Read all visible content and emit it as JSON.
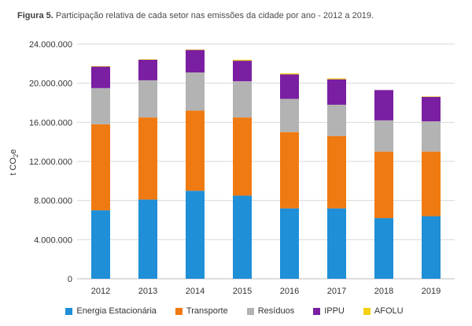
{
  "caption": {
    "label": "Figura 5.",
    "text": "Participação relativa de cada setor nas emissões da cidade por ano - 2012 a 2019."
  },
  "chart_data": {
    "type": "bar",
    "stacked": true,
    "title": "Participação relativa de cada setor nas emissões da cidade por ano - 2012 a 2019.",
    "xlabel": "",
    "ylabel": "t CO₂e",
    "ylim": [
      0,
      24000000
    ],
    "yticks": [
      0,
      4000000,
      8000000,
      12000000,
      16000000,
      20000000,
      24000000
    ],
    "ytick_labels": [
      "0",
      "4.000.000",
      "8.000.000",
      "12.000.000",
      "16.000.000",
      "20.000.000",
      "24.000.000"
    ],
    "grid": true,
    "legend_position": "bottom",
    "categories": [
      "2012",
      "2013",
      "2014",
      "2015",
      "2016",
      "2017",
      "2018",
      "2019"
    ],
    "series": [
      {
        "name": "Energia Estacionária",
        "color": "#1f8fd8",
        "values": [
          7000000,
          8100000,
          9000000,
          8500000,
          7200000,
          7200000,
          6200000,
          6400000
        ]
      },
      {
        "name": "Transporte",
        "color": "#f07a12",
        "values": [
          8800000,
          8400000,
          8200000,
          8000000,
          7800000,
          7400000,
          6800000,
          6600000
        ]
      },
      {
        "name": "Resíduos",
        "color": "#b3b3b3",
        "values": [
          3700000,
          3800000,
          3900000,
          3700000,
          3400000,
          3200000,
          3200000,
          3100000
        ]
      },
      {
        "name": "IPPU",
        "color": "#7a1fa2",
        "values": [
          2200000,
          2100000,
          2300000,
          2100000,
          2500000,
          2600000,
          3100000,
          2500000
        ]
      },
      {
        "name": "AFOLU",
        "color": "#f5d10f",
        "values": [
          50000,
          50000,
          50000,
          100000,
          100000,
          100000,
          0,
          50000
        ]
      }
    ]
  }
}
